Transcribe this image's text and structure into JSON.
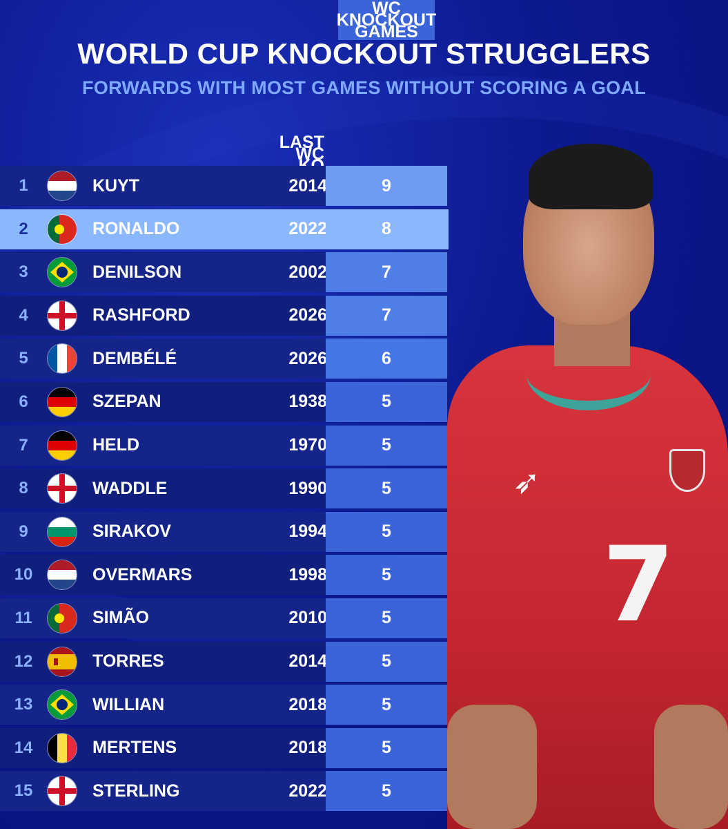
{
  "title": "WORLD CUP KNOCKOUT STRUGGLERS",
  "subtitle": "FORWARDS WITH MOST GAMES WITHOUT SCORING A GOAL",
  "columns": {
    "last_game": "LAST WC\nKO GAME",
    "games": "WC KNOCKOUT\nGAMES"
  },
  "rows": [
    {
      "rank": "1",
      "flag": "netherlands",
      "name": "KUYT",
      "year": "2014",
      "games": "9"
    },
    {
      "rank": "2",
      "flag": "portugal",
      "name": "RONALDO",
      "year": "2022",
      "games": "8"
    },
    {
      "rank": "3",
      "flag": "brazil",
      "name": "DENILSON",
      "year": "2002",
      "games": "7"
    },
    {
      "rank": "4",
      "flag": "england",
      "name": "RASHFORD",
      "year": "2026",
      "games": "7"
    },
    {
      "rank": "5",
      "flag": "france",
      "name": "DEMBÉLÉ",
      "year": "2026",
      "games": "6"
    },
    {
      "rank": "6",
      "flag": "germany",
      "name": "SZEPAN",
      "year": "1938",
      "games": "5"
    },
    {
      "rank": "7",
      "flag": "germany",
      "name": "HELD",
      "year": "1970",
      "games": "5"
    },
    {
      "rank": "8",
      "flag": "england",
      "name": "WADDLE",
      "year": "1990",
      "games": "5"
    },
    {
      "rank": "9",
      "flag": "bulgaria",
      "name": "SIRAKOV",
      "year": "1994",
      "games": "5"
    },
    {
      "rank": "10",
      "flag": "netherlands",
      "name": "OVERMARS",
      "year": "1998",
      "games": "5"
    },
    {
      "rank": "11",
      "flag": "portugal",
      "name": "SIMÃO",
      "year": "2010",
      "games": "5"
    },
    {
      "rank": "12",
      "flag": "spain",
      "name": "TORRES",
      "year": "2014",
      "games": "5"
    },
    {
      "rank": "13",
      "flag": "brazil",
      "name": "WILLIAN",
      "year": "2018",
      "games": "5"
    },
    {
      "rank": "14",
      "flag": "belgium",
      "name": "MERTENS",
      "year": "2018",
      "games": "5"
    },
    {
      "rank": "15",
      "flag": "england",
      "name": "STERLING",
      "year": "2022",
      "games": "5"
    }
  ],
  "highlight_rank": "2",
  "player_shirt_number": "7",
  "colors": {
    "background": "#0d1a8f",
    "accent": "#7fa9ff",
    "highlight": "#8bb7ff",
    "shirt": "#c42630"
  }
}
